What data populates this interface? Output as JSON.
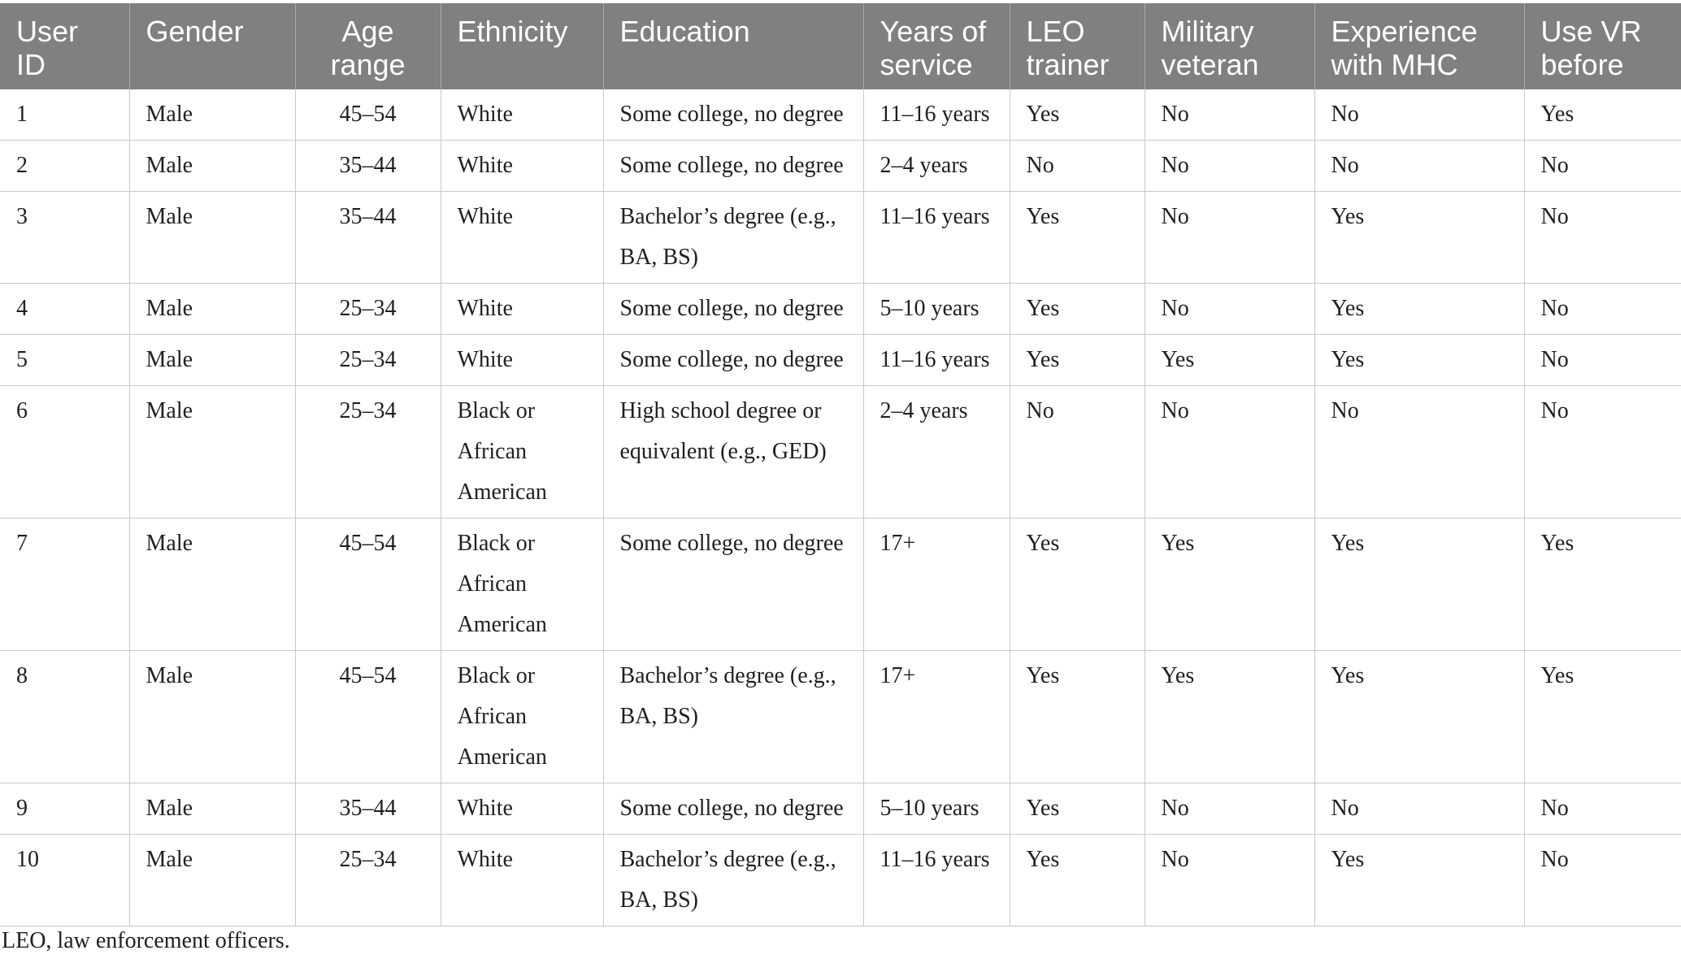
{
  "table": {
    "headers": [
      "User ID",
      "Gender",
      "Age range",
      "Ethnicity",
      "Education",
      "Years of service",
      "LEO trainer",
      "Military veteran",
      "Experience with MHC",
      "Use VR before"
    ],
    "rows": [
      [
        "1",
        "Male",
        "45–54",
        "White",
        "Some college, no degree",
        "11–16 years",
        "Yes",
        "No",
        "No",
        "Yes"
      ],
      [
        "2",
        "Male",
        "35–44",
        "White",
        "Some college, no degree",
        "2–4 years",
        "No",
        "No",
        "No",
        "No"
      ],
      [
        "3",
        "Male",
        "35–44",
        "White",
        "Bachelor’s degree (e.g., BA, BS)",
        "11–16 years",
        "Yes",
        "No",
        "Yes",
        "No"
      ],
      [
        "4",
        "Male",
        "25–34",
        "White",
        "Some college, no degree",
        "5–10 years",
        "Yes",
        "No",
        "Yes",
        "No"
      ],
      [
        "5",
        "Male",
        "25–34",
        "White",
        "Some college, no degree",
        "11–16 years",
        "Yes",
        "Yes",
        "Yes",
        "No"
      ],
      [
        "6",
        "Male",
        "25–34",
        "Black or African American",
        "High school degree or equivalent (e.g., GED)",
        "2–4 years",
        "No",
        "No",
        "No",
        "No"
      ],
      [
        "7",
        "Male",
        "45–54",
        "Black or African American",
        "Some college, no degree",
        "17+",
        "Yes",
        "Yes",
        "Yes",
        "Yes"
      ],
      [
        "8",
        "Male",
        "45–54",
        "Black or African American",
        "Bachelor’s degree (e.g., BA, BS)",
        "17+",
        "Yes",
        "Yes",
        "Yes",
        "Yes"
      ],
      [
        "9",
        "Male",
        "35–44",
        "White",
        "Some college, no degree",
        "5–10 years",
        "Yes",
        "No",
        "No",
        "No"
      ],
      [
        "10",
        "Male",
        "25–34",
        "White",
        "Bachelor’s degree (e.g., BA, BS)",
        "11–16 years",
        "Yes",
        "No",
        "Yes",
        "No"
      ]
    ]
  },
  "footnote": "LEO, law enforcement officers.",
  "colors": {
    "header_background": "#808080",
    "header_text": "#ffffff",
    "grid_line": "#c8c8c8",
    "body_text": "#1f1f1f"
  }
}
